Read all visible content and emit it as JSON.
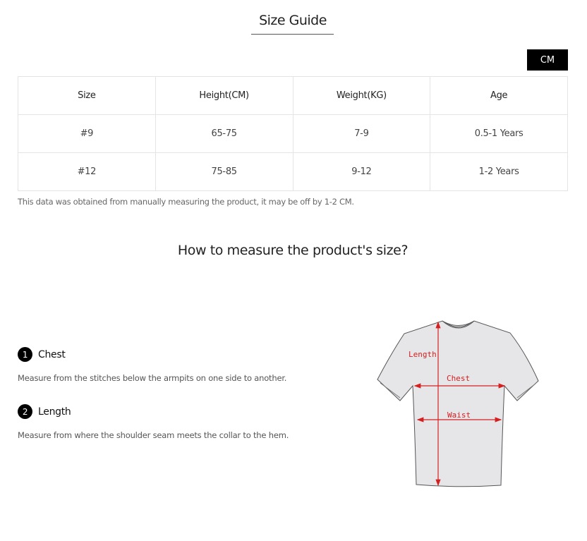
{
  "title": "Size Guide",
  "unit_button": "CM",
  "table": {
    "headers": [
      "Size",
      "Height(CM)",
      "Weight(KG)",
      "Age"
    ],
    "rows": [
      [
        "#9",
        "65-75",
        "7-9",
        "0.5-1 Years"
      ],
      [
        "#12",
        "75-85",
        "9-12",
        "1-2 Years"
      ]
    ]
  },
  "note": "This data was obtained from manually measuring the product, it may be off by 1-2 CM.",
  "how_title": "How to measure the product's size?",
  "steps": [
    {
      "num": "1",
      "label": "Chest",
      "desc": "Measure from the stitches below the armpits on one side to another."
    },
    {
      "num": "2",
      "label": "Length",
      "desc": "Measure from where the shoulder seam meets the collar to the hem."
    }
  ],
  "diagram": {
    "labels": {
      "length": "Length",
      "chest": "Chest",
      "waist": "Waist"
    },
    "arrow_color": "#d42020",
    "shirt_color": "#e6e6e9"
  }
}
